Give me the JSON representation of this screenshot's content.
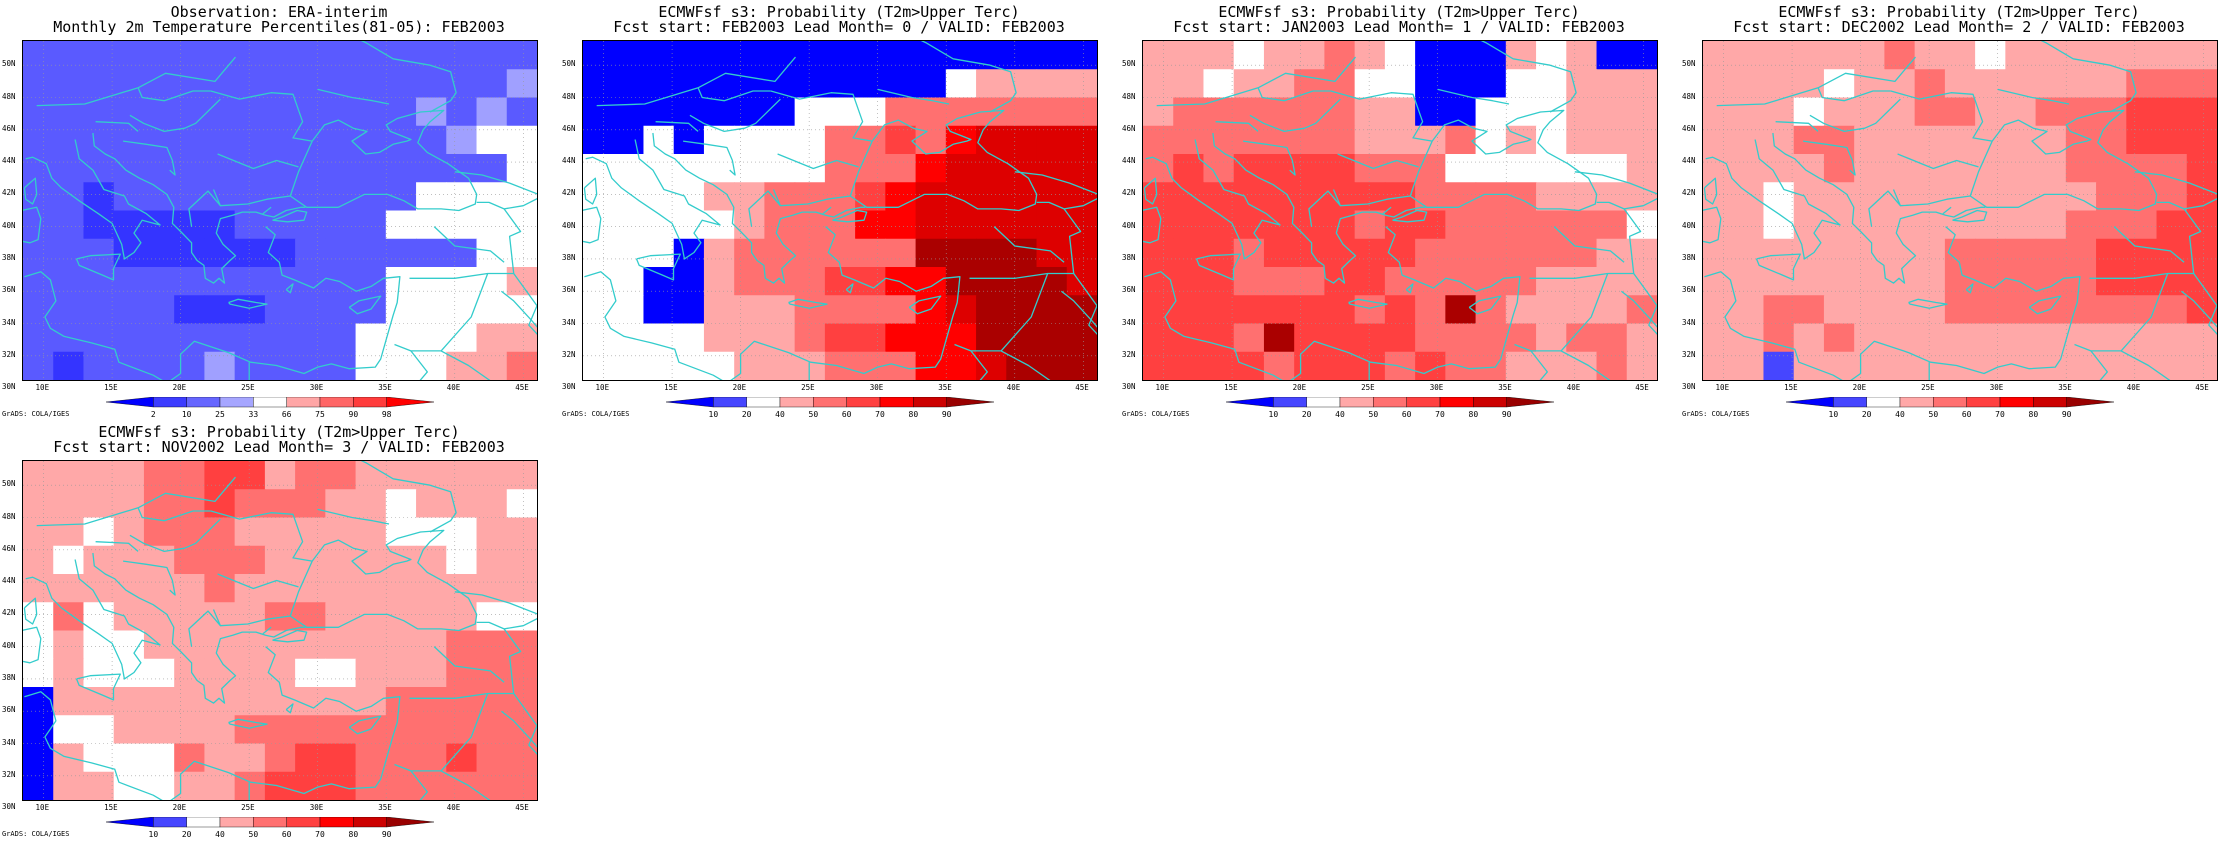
{
  "panels": [
    {
      "id": "obs",
      "title_line1": "Observation: ERA-interim",
      "title_line2": "Monthly 2m Temperature Percentiles(81-05): FEB2003",
      "colorbar_labels": [
        "2",
        "10",
        "25",
        "33",
        "66",
        "75",
        "90",
        "98"
      ],
      "colorbar_colors": [
        "#0000ff",
        "#3c3cff",
        "#6666ff",
        "#a6a6ff",
        "#ffffff",
        "#ffa6a6",
        "#ff6666",
        "#ff3c3c",
        "#ff0000"
      ],
      "grid": [
        "BBBBBBBBBBBBBBBBB",
        "BBBBBBBBBBBBBBBBL",
        "BBBBBBBBBBBBBLBLB",
        "BBBBBBBBBBBBBBLWW",
        "BBBBBBBBBBBBBBBBW",
        "BBMBBBBBBBBBBWWWW",
        "BBMMMMMBBBBBWWWWW",
        "BBBMMMMMMBBBBBBWW",
        "BBBBBBBBBBBBWWWWP",
        "BBBBBMMMBBBBWWWWW",
        "BBBBBBBBBBBWWWWPP",
        "BMBBBBLBBBBWWWQQR"
      ]
    },
    {
      "id": "lead0",
      "title_line1": "ECMWFsf s3: Probability (T2m>Upper Terc)",
      "title_line2": "Fcst start: FEB2003   Lead Month= 0 / VALID: FEB2003",
      "colorbar_labels": [
        "10",
        "20",
        "40",
        "50",
        "60",
        "70",
        "80",
        "90"
      ],
      "colorbar_colors": [
        "#0000ff",
        "#4646ff",
        "#ffffff",
        "#ffa8a8",
        "#ff7070",
        "#ff4040",
        "#ff0000",
        "#cc0000",
        "#990000"
      ],
      "grid": [
        "DDDDDDDDDDDDDDDDD",
        "DDDDDDDDDDDDWQQQQ",
        "DDDDDDDWWWRRRRRRR",
        "DDWDWWWWRRSRTUUUU",
        "WWWWWWWWRRRTUUUUU",
        "WWWWQQRRRSTUUUUUU",
        "WWWWWQRRRTTUUUUUU",
        "WWWDQRRRRRRVVVVUU",
        "WWDDQRRRSSTTVVVVU",
        "WWDDQQQRRRRTUVVVV",
        "WWWWQQQRSSTTTVVVV",
        "WWWWWQQQRRRTTUVVV"
      ]
    },
    {
      "id": "lead1",
      "title_line1": "ECMWFsf s3: Probability (T2m>Upper Terc)",
      "title_line2": "Fcst start: JAN2003   Lead Month= 1 / VALID: FEB2003",
      "colorbar_labels": [
        "10",
        "20",
        "40",
        "50",
        "60",
        "70",
        "80",
        "90"
      ],
      "colorbar_colors": [
        "#0000ff",
        "#4646ff",
        "#ffffff",
        "#ffa8a8",
        "#ff7070",
        "#ff4040",
        "#ff0000",
        "#cc0000",
        "#990000"
      ],
      "grid": [
        "QQQWQQRQWDDDQWQDD",
        "QQWQQRRWWDDDWWQQQ",
        "QRRRRRRQQDDWWWQQQ",
        "RRRRRRRQQQRWQWQQQ",
        "RSRSSSSRRRWWWWWWQ",
        "SSSSSSSSSRRRRQQQQ",
        "SSSSSSSRSSRRRRRRW",
        "SSSRSSSSSRRRRRRQQ",
        "SSSRRRSSRRRRRQQQQ",
        "SSSSSSSRSRVRQQQQR",
        "SSSRVSSSSRRRRQRRQ",
        "SSSSRSSSRSRRQQQRQ"
      ]
    },
    {
      "id": "lead2",
      "title_line1": "ECMWFsf s3: Probability (T2m>Upper Terc)",
      "title_line2": "Fcst start: DEC2002   Lead Month= 2 / VALID: FEB2003",
      "colorbar_labels": [
        "10",
        "20",
        "40",
        "50",
        "60",
        "70",
        "80",
        "90"
      ],
      "colorbar_colors": [
        "#0000ff",
        "#4646ff",
        "#ffffff",
        "#ffa8a8",
        "#ff7070",
        "#ff4040",
        "#ff0000",
        "#cc0000",
        "#990000"
      ],
      "grid": [
        "QQQQQQRQQWQQQQQQQ",
        "QQQQWQQRQQQQQQRRR",
        "QQQWQQQRRQQRRRSSS",
        "QQQRRQQQQQQQRRSSS",
        "QQQQRQQQQQQQRRRRS",
        "QQWQQQQQQQQQQRRRS",
        "QQWQQQQQQQQQRRRSS",
        "QQQQQQQQRRRRRSSSS",
        "QQQQQQQQRRRRRSSSS",
        "QQRRQQQQRRRRRRRRS",
        "QQRQRQQQQQQQQQQQQ",
        "QQEQQQQQQQQQQQQQQ"
      ]
    },
    {
      "id": "lead3",
      "title_line1": "ECMWFsf s3: Probability (T2m>Upper Terc)",
      "title_line2": "Fcst start: NOV2002   Lead Month= 3 / VALID: FEB2003",
      "colorbar_labels": [
        "10",
        "20",
        "40",
        "50",
        "60",
        "70",
        "80",
        "90"
      ],
      "colorbar_colors": [
        "#0000ff",
        "#4646ff",
        "#ffffff",
        "#ffa8a8",
        "#ff7070",
        "#ff4040",
        "#ff0000",
        "#cc0000",
        "#990000"
      ],
      "grid": [
        "QQQQRRSSQRRQQQQQQ",
        "QQQQRRSRRRQQWQQQW",
        "QQWQRRRQQQQQWWWQQ",
        "QWQQQRRRQQQQQQWQQ",
        "QQQQQQRQQQQQQQQQQ",
        "WRWQQQQQRRQQQQQWW",
        "WQWWQQQQQQQQQQRRR",
        "WQWWWQQQQWWQQQRRR",
        "DQQQQQQQQQQQRRRRR",
        "DWWQQQQRRRRRRRRRR",
        "DQWWWRQQRSSRRRSRR",
        "DQQWWQQRSSSRRRRRR"
      ]
    }
  ],
  "map_axes": {
    "lat_labels": [
      "50N",
      "48N",
      "46N",
      "44N",
      "42N",
      "40N",
      "38N",
      "36N",
      "34N",
      "32N",
      "30N"
    ],
    "lon_labels": [
      "10E",
      "15E",
      "20E",
      "25E",
      "30E",
      "35E",
      "40E",
      "45E"
    ]
  },
  "footer_text": "GrADS: COLA/IGES"
}
